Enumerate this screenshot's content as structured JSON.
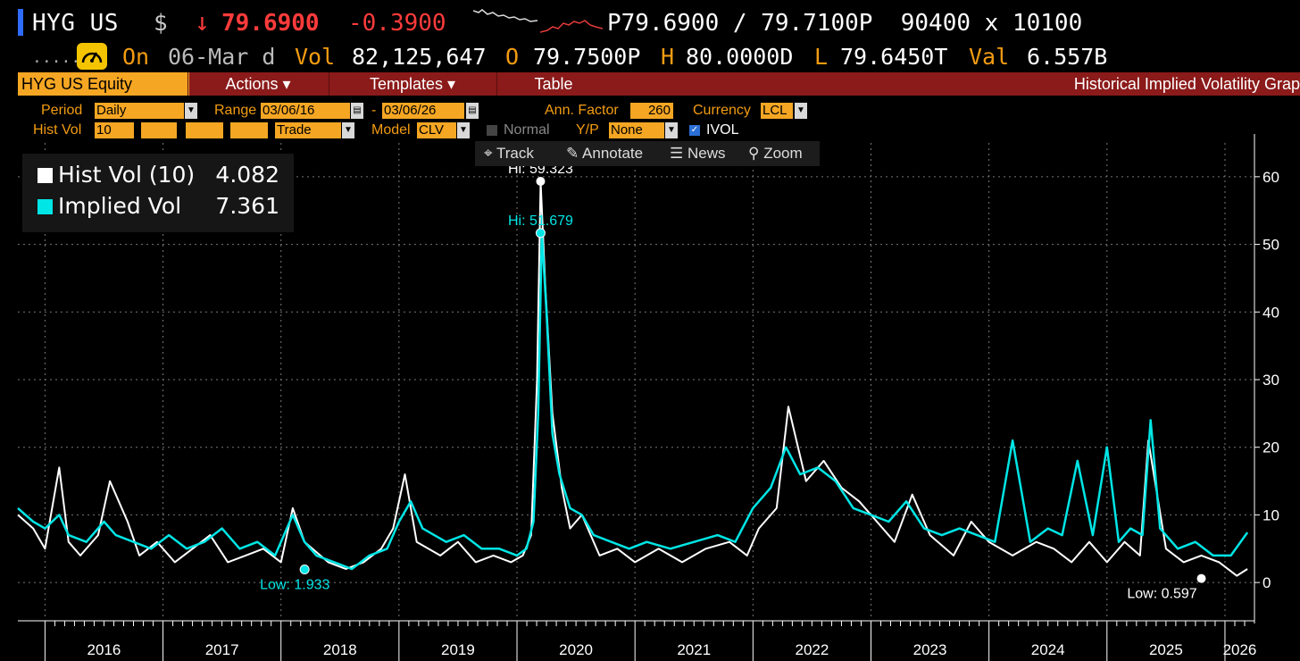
{
  "header": {
    "ticker": "HYG US",
    "currency_symbol": "$",
    "direction_arrow": "↓",
    "last_price": "79.6900",
    "net_change": "-0.3900",
    "bid_ask": "P79.6900 / 79.7100P",
    "size": "90400 x 10100",
    "dots": "......",
    "on_label": "On",
    "date": "06-Mar d",
    "vol_label": "Vol",
    "volume": "82,125,647",
    "open_label": "O",
    "open": "79.7500P",
    "high_label": "H",
    "high": "80.0000D",
    "low_label": "L",
    "low": "79.6450T",
    "val_label": "Val",
    "value": "6.557B"
  },
  "menu": {
    "security": "HYG US Equity",
    "actions": "Actions ▾",
    "templates": "Templates ▾",
    "table": "Table",
    "title": "Historical Implied Volatility Grap"
  },
  "params": {
    "period_label": "Period",
    "period_value": "Daily",
    "range_label": "Range",
    "range_start": "03/06/16",
    "range_sep": "-",
    "range_end": "03/06/26",
    "ann_factor_label": "Ann. Factor",
    "ann_factor_value": "260",
    "currency_label": "Currency",
    "currency_value": "LCL",
    "hist_vol_label": "Hist Vol",
    "hist_vol_value": "10",
    "trade_value": "Trade",
    "model_label": "Model",
    "model_value": "CLV",
    "normal_label": "Normal",
    "yp_label": "Y/P",
    "yp_value": "None",
    "ivol_label": "IVOL"
  },
  "toolbar": {
    "track": "Track",
    "annotate": "Annotate",
    "news": "News",
    "zoom": "Zoom"
  },
  "legend": {
    "hist_label": "Hist Vol (10)",
    "hist_value": "4.082",
    "impl_label": "Implied Vol",
    "impl_value": "7.361"
  },
  "colors": {
    "hist": "#ffffff",
    "implied": "#00e5e5",
    "accent": "#f39c12",
    "menubar": "#8b1a1a",
    "down": "#ff3b3b"
  },
  "chart_data": {
    "type": "line",
    "title": "Historical Implied Volatility Graph",
    "xlabel": "",
    "ylabel": "",
    "ylim": [
      -5,
      65
    ],
    "xlim": [
      2015.77,
      2026.25
    ],
    "yticks": [
      0,
      10,
      20,
      30,
      40,
      50,
      60
    ],
    "x_ticks": [
      "2016",
      "2017",
      "2018",
      "2019",
      "2020",
      "2021",
      "2022",
      "2023",
      "2024",
      "2025",
      "2026"
    ],
    "grid": true,
    "annotations": [
      {
        "text": "Hi: 59.323",
        "x": 2020.2,
        "y": 59.323,
        "series": "Hist Vol (10)"
      },
      {
        "text": "Hi: 51.679",
        "x": 2020.2,
        "y": 51.679,
        "series": "Implied Vol"
      },
      {
        "text": "Low: 1.933",
        "x": 2018.2,
        "y": 1.933,
        "series": "Implied Vol"
      },
      {
        "text": "Low: 0.597",
        "x": 2025.8,
        "y": 0.597,
        "series": "Hist Vol (10)"
      }
    ],
    "series": [
      {
        "name": "Hist Vol (10)",
        "x": [
          2015.77,
          2015.9,
          2016.0,
          2016.12,
          2016.2,
          2016.3,
          2016.45,
          2016.55,
          2016.7,
          2016.8,
          2016.95,
          2017.1,
          2017.25,
          2017.4,
          2017.55,
          2017.7,
          2017.85,
          2018.0,
          2018.1,
          2018.2,
          2018.4,
          2018.55,
          2018.7,
          2018.85,
          2018.95,
          2019.05,
          2019.15,
          2019.35,
          2019.5,
          2019.65,
          2019.8,
          2019.95,
          2020.05,
          2020.12,
          2020.17,
          2020.2,
          2020.24,
          2020.3,
          2020.38,
          2020.45,
          2020.55,
          2020.7,
          2020.85,
          2021.0,
          2021.2,
          2021.4,
          2021.6,
          2021.8,
          2021.95,
          2022.05,
          2022.2,
          2022.3,
          2022.45,
          2022.6,
          2022.75,
          2022.9,
          2023.05,
          2023.2,
          2023.35,
          2023.5,
          2023.7,
          2023.85,
          2024.0,
          2024.2,
          2024.4,
          2024.55,
          2024.7,
          2024.85,
          2025.0,
          2025.15,
          2025.28,
          2025.35,
          2025.5,
          2025.65,
          2025.8,
          2025.95,
          2026.1,
          2026.19
        ],
        "y": [
          10,
          8,
          5,
          17,
          6,
          4,
          7,
          15,
          9,
          4,
          6,
          3,
          5,
          7,
          3,
          4,
          5,
          3,
          11,
          6,
          3,
          2,
          3,
          5,
          8,
          16,
          6,
          4,
          6,
          3,
          4,
          3,
          4,
          7,
          30,
          59.3,
          44,
          25,
          14,
          8,
          10,
          4,
          5,
          3,
          5,
          3,
          5,
          6,
          4,
          8,
          11,
          26,
          15,
          18,
          14,
          12,
          9,
          6,
          13,
          7,
          4,
          9,
          6,
          4,
          6,
          5,
          3,
          6,
          3,
          6,
          4,
          21,
          5,
          3,
          4,
          3,
          1,
          2
        ]
      },
      {
        "name": "Implied Vol",
        "x": [
          2015.77,
          2015.9,
          2016.0,
          2016.12,
          2016.2,
          2016.35,
          2016.5,
          2016.6,
          2016.75,
          2016.9,
          2017.05,
          2017.2,
          2017.35,
          2017.5,
          2017.65,
          2017.8,
          2017.95,
          2018.1,
          2018.2,
          2018.3,
          2018.45,
          2018.6,
          2018.75,
          2018.9,
          2019.0,
          2019.1,
          2019.2,
          2019.4,
          2019.55,
          2019.7,
          2019.85,
          2020.0,
          2020.08,
          2020.14,
          2020.18,
          2020.21,
          2020.25,
          2020.3,
          2020.36,
          2020.45,
          2020.55,
          2020.65,
          2020.8,
          2020.95,
          2021.1,
          2021.3,
          2021.5,
          2021.7,
          2021.85,
          2022.0,
          2022.15,
          2022.28,
          2022.4,
          2022.55,
          2022.7,
          2022.85,
          2023.0,
          2023.15,
          2023.3,
          2023.45,
          2023.6,
          2023.75,
          2023.9,
          2024.05,
          2024.2,
          2024.35,
          2024.5,
          2024.62,
          2024.75,
          2024.88,
          2025.0,
          2025.1,
          2025.2,
          2025.3,
          2025.37,
          2025.45,
          2025.6,
          2025.75,
          2025.9,
          2026.05,
          2026.19
        ],
        "y": [
          11,
          9,
          8,
          10,
          7,
          6,
          9,
          7,
          6,
          5,
          7,
          5,
          6,
          8,
          5,
          6,
          4,
          10,
          6,
          4,
          3,
          2,
          4,
          5,
          9,
          12,
          8,
          6,
          7,
          5,
          5,
          4,
          5,
          9,
          25,
          51.7,
          40,
          22,
          16,
          11,
          10,
          7,
          6,
          5,
          6,
          5,
          6,
          7,
          6,
          11,
          14,
          20,
          16,
          17,
          15,
          11,
          10,
          9,
          12,
          8,
          7,
          8,
          7,
          6,
          21,
          6,
          8,
          7,
          18,
          7,
          20,
          6,
          8,
          7,
          24,
          8,
          5,
          6,
          4,
          4,
          7.4
        ]
      }
    ]
  }
}
